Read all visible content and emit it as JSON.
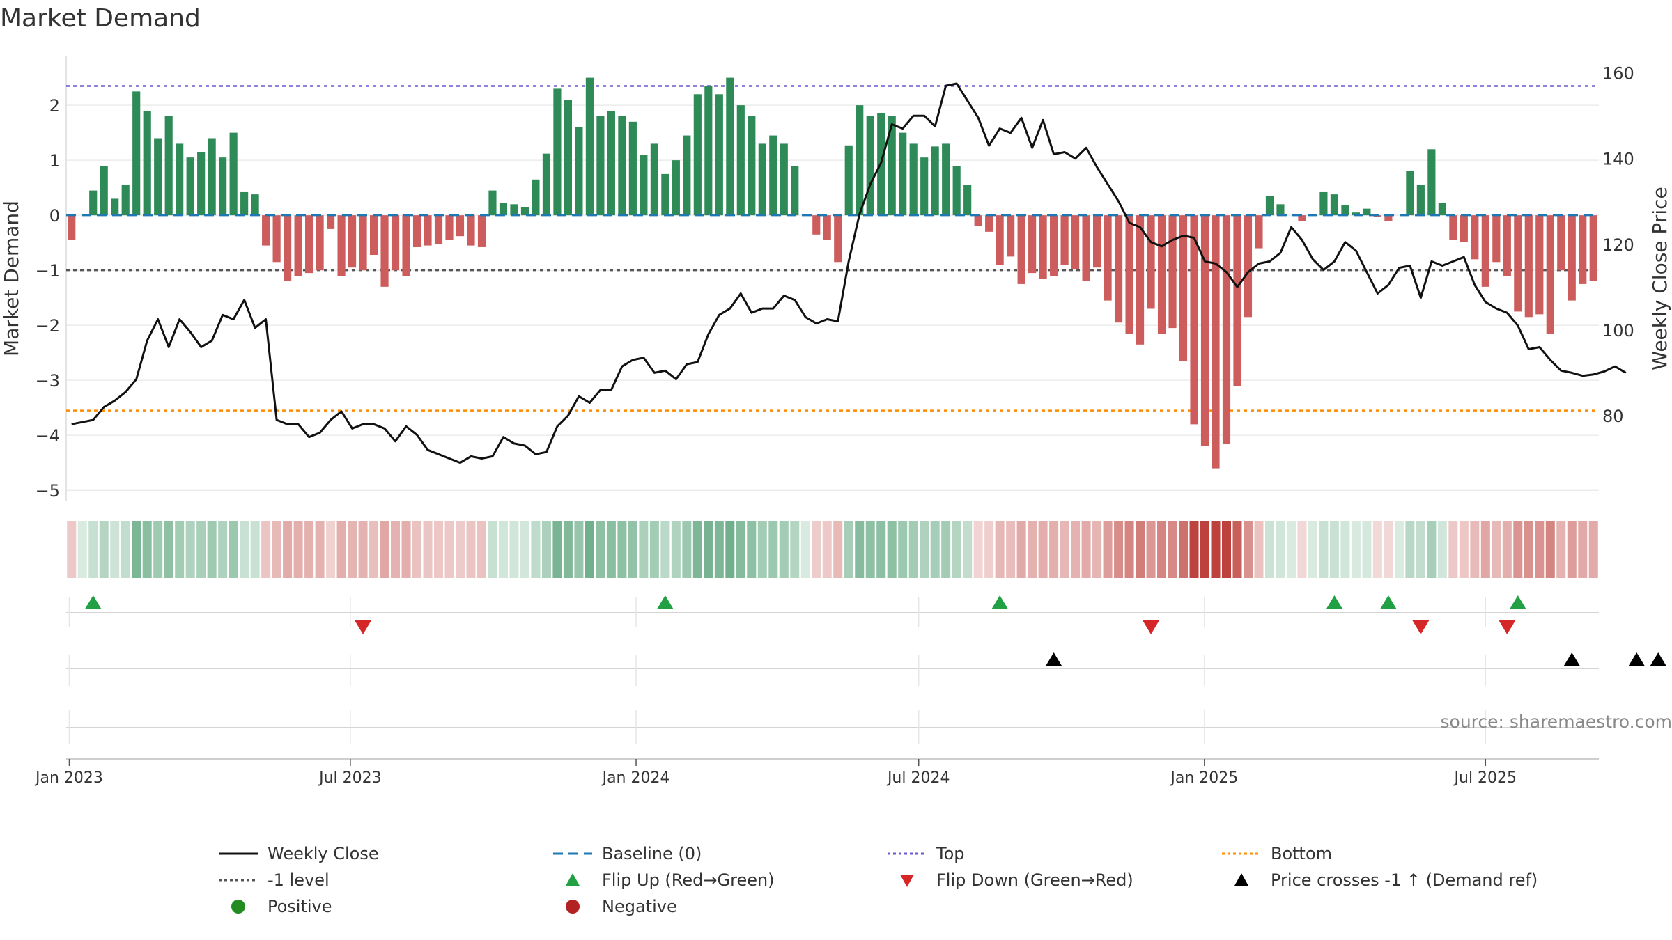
{
  "chart_data": {
    "type": "bar+line",
    "title": "Market Demand",
    "ylabel": "Market Demand",
    "y2label": "Weekly Close Price",
    "ylim": [
      -5.2,
      2.9
    ],
    "y2lim": [
      60,
      164
    ],
    "yticks": [
      -5,
      -4,
      -3,
      -2,
      -1,
      0,
      1,
      2
    ],
    "y2ticks": [
      80,
      100,
      120,
      140,
      160
    ],
    "x_start": "2022-12-30",
    "x_end": "2025-09-12",
    "x_tick_dates": [
      "2023-01-01",
      "2023-07-01",
      "2024-01-01",
      "2024-07-01",
      "2025-01-01",
      "2025-07-01"
    ],
    "x_tick_labels": [
      "Jan 2023",
      "Jul 2023",
      "Jan 2024",
      "Jul 2024",
      "Jan 2025",
      "Jul 2025"
    ],
    "reference_lines": {
      "top": 2.35,
      "minus_one": -1.0,
      "bottom": -3.55,
      "baseline": 0
    },
    "market_demand": [
      -0.45,
      0.0,
      0.45,
      0.9,
      0.3,
      0.55,
      2.25,
      1.9,
      1.4,
      1.8,
      1.3,
      1.05,
      1.15,
      1.4,
      1.05,
      1.5,
      0.42,
      0.38,
      -0.55,
      -0.85,
      -1.2,
      -1.1,
      -1.05,
      -1.0,
      -0.25,
      -1.1,
      -0.95,
      -1.0,
      -0.72,
      -1.3,
      -1.0,
      -1.1,
      -0.58,
      -0.55,
      -0.52,
      -0.45,
      -0.38,
      -0.55,
      -0.58,
      0.45,
      0.22,
      0.2,
      0.15,
      0.65,
      1.12,
      2.3,
      2.1,
      1.6,
      2.5,
      1.8,
      1.9,
      1.8,
      1.7,
      1.1,
      1.3,
      0.75,
      1.0,
      1.45,
      2.2,
      2.35,
      2.2,
      2.5,
      2.0,
      1.8,
      1.3,
      1.45,
      1.3,
      0.9,
      0.0,
      -0.35,
      -0.45,
      -0.85,
      1.27,
      2.0,
      1.8,
      1.85,
      1.8,
      1.5,
      1.3,
      1.05,
      1.25,
      1.3,
      0.9,
      0.55,
      -0.2,
      -0.3,
      -0.9,
      -0.75,
      -1.25,
      -1.05,
      -1.15,
      -1.1,
      -0.9,
      -0.98,
      -1.2,
      -0.95,
      -1.55,
      -1.95,
      -2.15,
      -2.35,
      -1.7,
      -2.15,
      -2.05,
      -2.65,
      -3.8,
      -4.2,
      -4.6,
      -4.15,
      -3.1,
      -1.85,
      -0.6,
      0.35,
      0.2,
      0.0,
      -0.1,
      0.0,
      0.42,
      0.38,
      0.18,
      0.05,
      0.12,
      -0.03,
      -0.1,
      0.0,
      0.8,
      0.55,
      1.2,
      0.22,
      -0.45,
      -0.48,
      -0.8,
      -1.3,
      -0.85,
      -1.1,
      -1.75,
      -1.85,
      -1.8,
      -2.15,
      -1.0,
      -1.55,
      -1.25,
      -1.2
    ],
    "weekly_close": [
      78,
      78.5,
      79,
      82,
      83.5,
      85.5,
      88.5,
      97.5,
      102.5,
      96,
      102.5,
      99.5,
      96,
      97.5,
      103.5,
      102.5,
      107,
      100.5,
      102.5,
      79,
      78,
      78,
      75,
      76,
      79,
      81,
      77,
      78,
      78,
      77,
      74,
      77.5,
      75.5,
      72,
      71,
      70,
      69,
      70.5,
      70,
      70.5,
      75,
      73.5,
      73,
      71,
      71.5,
      77.5,
      80,
      84.5,
      83,
      86,
      86,
      91.5,
      93,
      93.5,
      90,
      90.5,
      88.5,
      92,
      92.5,
      99,
      103.5,
      105,
      108.5,
      104,
      105,
      105,
      108,
      107,
      103,
      101.5,
      102.5,
      102,
      116,
      127,
      134,
      139,
      148,
      147,
      150,
      150,
      147.5,
      157,
      157.5,
      153.5,
      149.5,
      143,
      147,
      146,
      149.5,
      142.5,
      149,
      141,
      141.5,
      140,
      142.5,
      138,
      134,
      130,
      125,
      124,
      120.5,
      119.5,
      121,
      122,
      121.5,
      116,
      115.5,
      113.5,
      110,
      113.5,
      115.5,
      116,
      118,
      124,
      121,
      116.5,
      114,
      116,
      120.5,
      118.5,
      113.5,
      108.5,
      110.5,
      114.5,
      115,
      107.5,
      116,
      115,
      116,
      117,
      110.5,
      106.5,
      105,
      104,
      101,
      95.5,
      96,
      93,
      90.5,
      90,
      89.3,
      89.6,
      90.3,
      91.5,
      90
    ],
    "flip_up_weeks": [
      2,
      55,
      86,
      117,
      122,
      134
    ],
    "flip_down_weeks": [
      27,
      100,
      125,
      133
    ],
    "price_cross_weeks": [
      91,
      139,
      145,
      147
    ]
  },
  "legend": {
    "weekly_close": "Weekly Close",
    "baseline": "Baseline (0)",
    "top": "Top",
    "bottom": "Bottom",
    "minus_one": "-1 level",
    "flip_up": "Flip Up (Red→Green)",
    "flip_down": "Flip Down (Green→Red)",
    "price_cross": "Price crosses -1 ↑ (Demand ref)",
    "positive": "Positive",
    "negative": "Negative"
  },
  "source": "source: sharemaestro.com",
  "colors": {
    "positive": "#2e8b57",
    "negative": "#cd5c5c",
    "price_line": "#111111",
    "baseline": "#1f77b4",
    "top": "#6a5acd",
    "minus_one": "#555555",
    "bottom": "#ff8c00",
    "flip_up": "#22a044",
    "flip_down": "#d62728",
    "price_cross": "#000000",
    "legend_positive": "#228b22",
    "legend_negative": "#b22222"
  }
}
